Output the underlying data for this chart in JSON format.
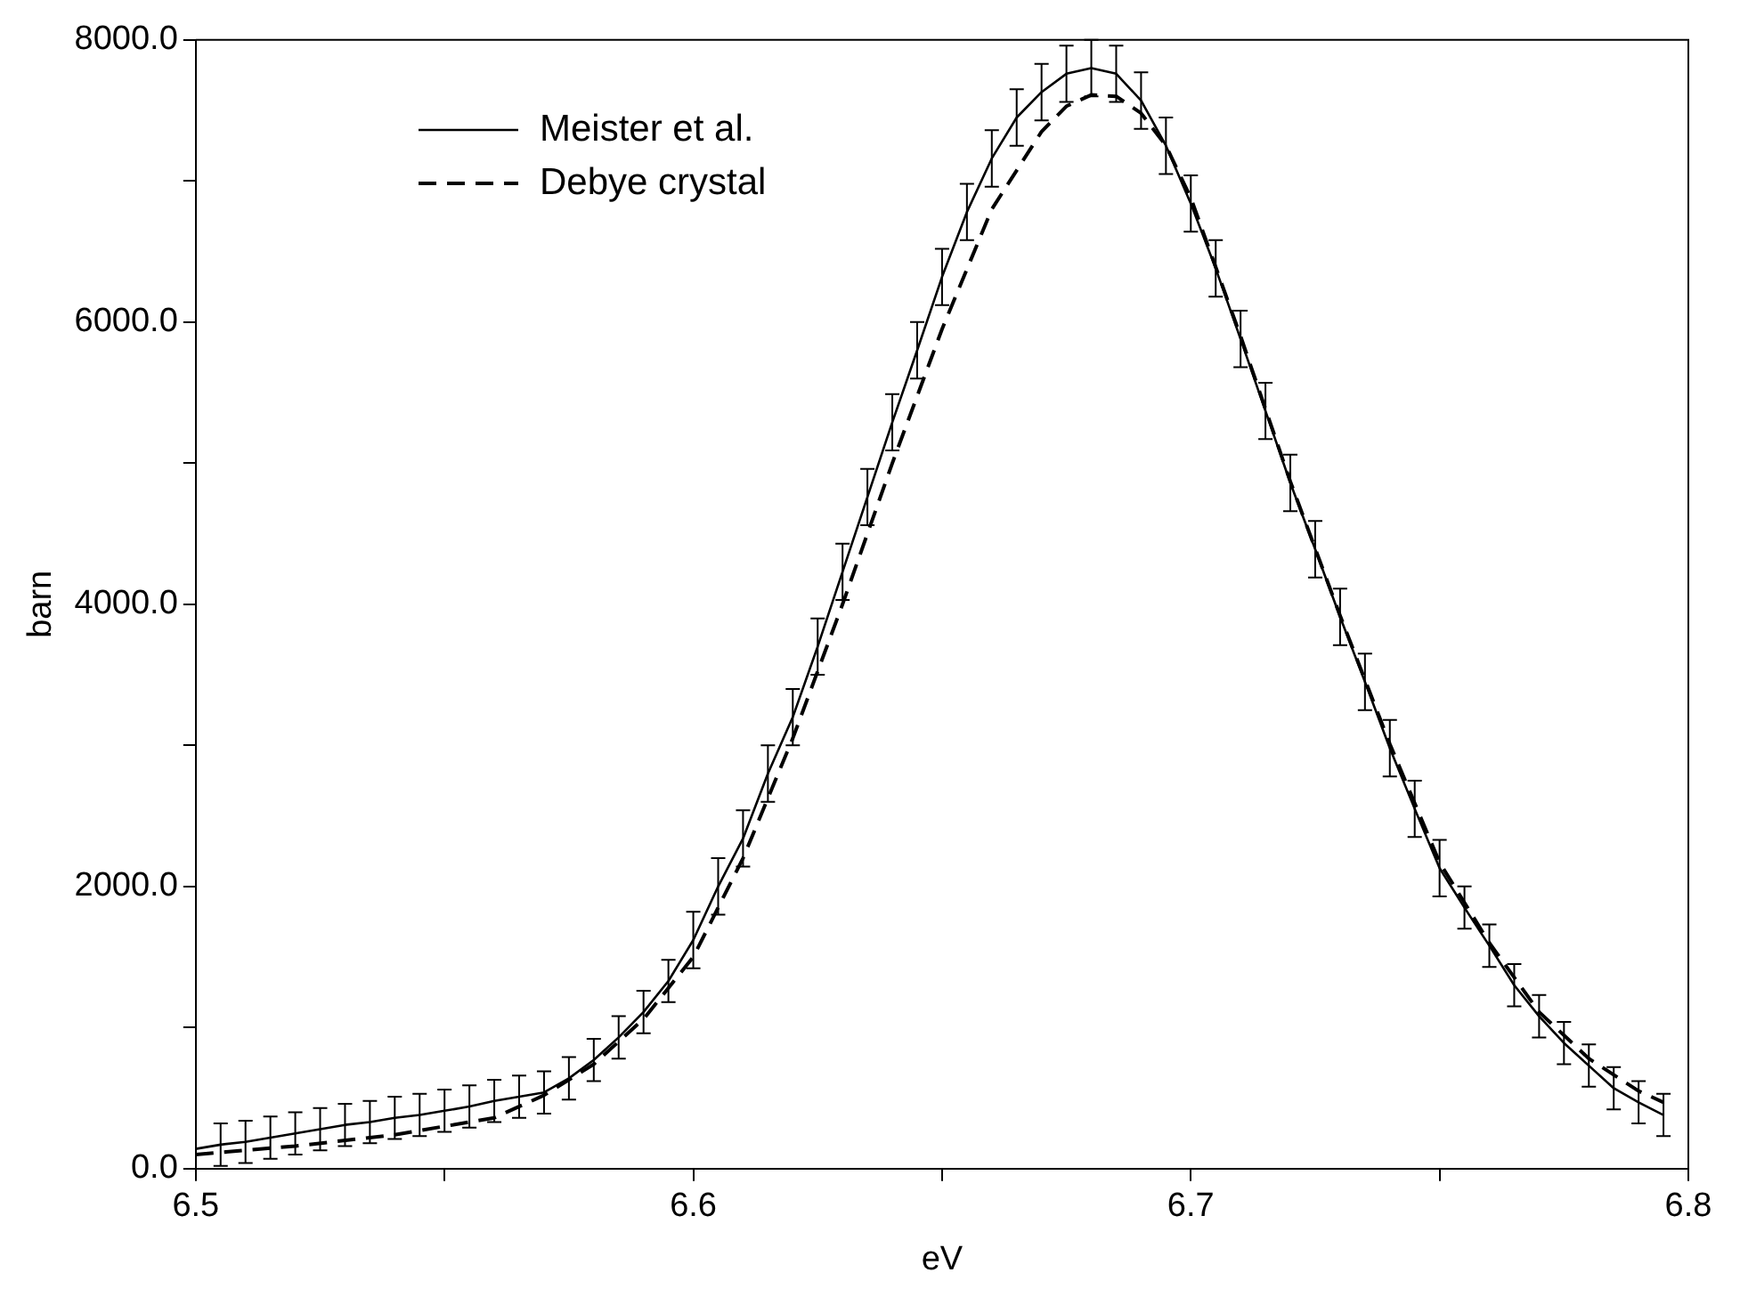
{
  "chart_data": {
    "type": "line",
    "xlabel": "eV",
    "ylabel": "barn",
    "xlim": [
      6.5,
      6.8
    ],
    "ylim": [
      0,
      8000
    ],
    "xticks": [
      {
        "value": 6.5,
        "label": "6.5"
      },
      {
        "value": 6.55,
        "label": null
      },
      {
        "value": 6.6,
        "label": "6.6"
      },
      {
        "value": 6.65,
        "label": null
      },
      {
        "value": 6.7,
        "label": "6.7"
      },
      {
        "value": 6.75,
        "label": null
      },
      {
        "value": 6.8,
        "label": "6.8"
      }
    ],
    "yticks": [
      {
        "value": 0,
        "label": "0.0"
      },
      {
        "value": 1000,
        "label": null
      },
      {
        "value": 2000,
        "label": "2000.0"
      },
      {
        "value": 3000,
        "label": null
      },
      {
        "value": 4000,
        "label": "4000.0"
      },
      {
        "value": 5000,
        "label": null
      },
      {
        "value": 6000,
        "label": "6000.0"
      },
      {
        "value": 7000,
        "label": null
      },
      {
        "value": 8000,
        "label": "8000.0"
      }
    ],
    "grid": false,
    "legend": "top left",
    "marker": "none",
    "series": [
      {
        "name": "Meister et al.",
        "color": "#000000",
        "line_style": "solid",
        "x": [
          6.5,
          6.505,
          6.51,
          6.515,
          6.52,
          6.525,
          6.53,
          6.535,
          6.54,
          6.545,
          6.55,
          6.555,
          6.56,
          6.565,
          6.57,
          6.575,
          6.58,
          6.585,
          6.59,
          6.595,
          6.6,
          6.605,
          6.61,
          6.615,
          6.62,
          6.625,
          6.63,
          6.635,
          6.64,
          6.645,
          6.65,
          6.655,
          6.66,
          6.665,
          6.67,
          6.675,
          6.68,
          6.685,
          6.69,
          6.695,
          6.7,
          6.705,
          6.71,
          6.715,
          6.72,
          6.725,
          6.73,
          6.735,
          6.74,
          6.745,
          6.75,
          6.755,
          6.76,
          6.765,
          6.77,
          6.775,
          6.78,
          6.785,
          6.79,
          6.795
        ],
        "values": [
          140,
          170,
          190,
          220,
          250,
          280,
          310,
          330,
          360,
          380,
          410,
          440,
          480,
          510,
          540,
          640,
          770,
          930,
          1110,
          1330,
          1620,
          2000,
          2340,
          2800,
          3200,
          3700,
          4230,
          4760,
          5290,
          5800,
          6320,
          6780,
          7160,
          7450,
          7630,
          7760,
          7800,
          7760,
          7570,
          7250,
          6840,
          6380,
          5880,
          5370,
          4860,
          4390,
          3910,
          3450,
          2980,
          2550,
          2130,
          1850,
          1580,
          1300,
          1080,
          890,
          730,
          570,
          470,
          380
        ],
        "errors": [
          null,
          150,
          150,
          150,
          150,
          150,
          150,
          150,
          150,
          150,
          150,
          150,
          150,
          150,
          150,
          150,
          150,
          150,
          150,
          150,
          200,
          200,
          200,
          200,
          200,
          200,
          200,
          200,
          200,
          200,
          200,
          200,
          200,
          200,
          200,
          200,
          200,
          200,
          200,
          200,
          200,
          200,
          200,
          200,
          200,
          200,
          200,
          200,
          200,
          200,
          200,
          150,
          150,
          150,
          150,
          150,
          150,
          150,
          150,
          150
        ]
      },
      {
        "name": "Debye crystal",
        "color": "#000000",
        "line_style": "dashed",
        "x": [
          6.5,
          6.52,
          6.54,
          6.56,
          6.57,
          6.58,
          6.59,
          6.6,
          6.61,
          6.62,
          6.63,
          6.64,
          6.65,
          6.66,
          6.67,
          6.675,
          6.68,
          6.685,
          6.69,
          6.695,
          6.7,
          6.71,
          6.72,
          6.73,
          6.74,
          6.75,
          6.76,
          6.77,
          6.78,
          6.79,
          6.795
        ],
        "values": [
          100,
          160,
          240,
          360,
          520,
          740,
          1060,
          1500,
          2200,
          3050,
          4000,
          5000,
          5950,
          6800,
          7350,
          7530,
          7610,
          7600,
          7480,
          7250,
          6880,
          5900,
          4870,
          3920,
          3010,
          2170,
          1600,
          1110,
          780,
          550,
          470
        ]
      }
    ]
  }
}
